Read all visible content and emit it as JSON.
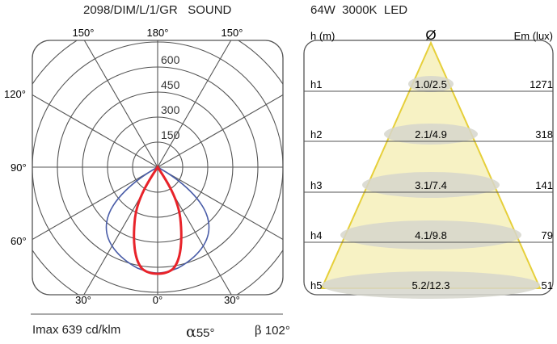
{
  "header": {
    "model": "2098/DIM/L/1/GR   SOUND",
    "lamp": "64W  3000K  LED"
  },
  "polar": {
    "angle_labels": {
      "top_left": "150°",
      "top_center": "180°",
      "top_right": "150°",
      "left_120": "120°",
      "left_90": "90°",
      "left_60": "60°",
      "bottom_left": "30°",
      "bottom_center": "0°",
      "bottom_right": "30°"
    },
    "radial_labels": [
      "600",
      "450",
      "300",
      "150"
    ],
    "colors": {
      "c0": "#e8232a",
      "c90": "#4a5da8",
      "grid": "#555555"
    }
  },
  "cone": {
    "left_header": "h (m)",
    "center_header": "Ø",
    "right_header": "Em (lux)",
    "rows": [
      {
        "h": "h1",
        "dia": "1.0/2.5",
        "em": "1271"
      },
      {
        "h": "h2",
        "dia": "2.1/4.9",
        "em": "318"
      },
      {
        "h": "h3",
        "dia": "3.1/7.4",
        "em": "141"
      },
      {
        "h": "h4",
        "dia": "4.1/9.8",
        "em": "79"
      },
      {
        "h": "h5",
        "dia": "5.2/12.3",
        "em": "51"
      }
    ],
    "colors": {
      "fill": "#f7f2c4",
      "stroke": "#e6cf3a",
      "ellipse": "#d6d6cc"
    }
  },
  "footer": {
    "imax": "Imax 639 cd/klm",
    "alpha_symbol": "α",
    "alpha_value": "55°",
    "beta_symbol": "β",
    "beta_value": "102°"
  }
}
